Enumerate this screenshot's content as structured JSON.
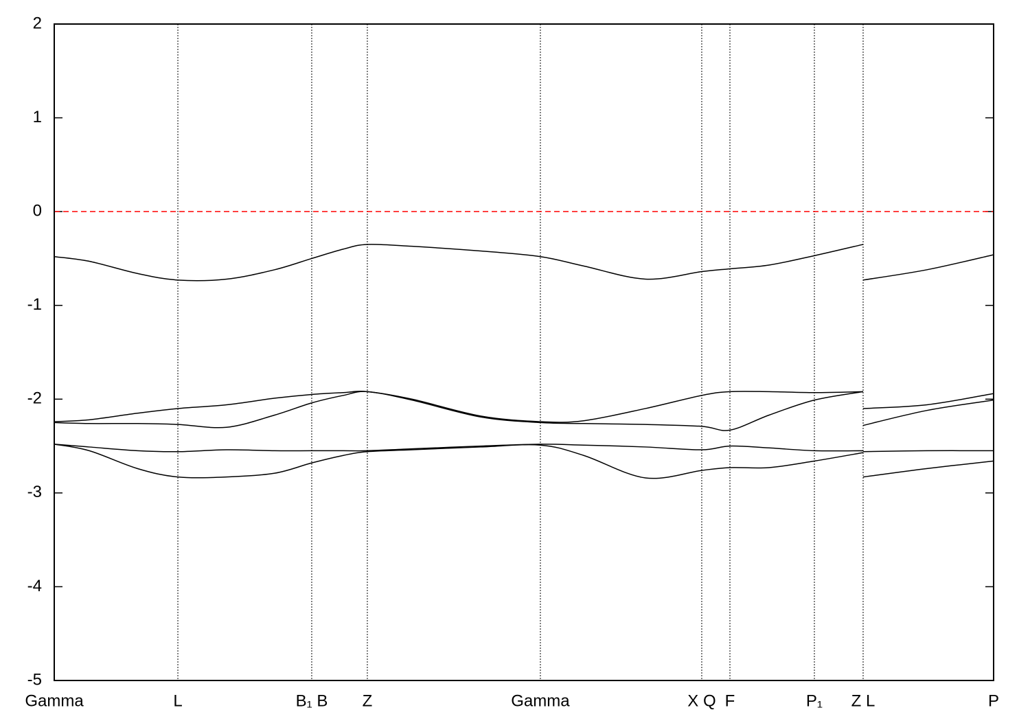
{
  "chart_data": {
    "type": "line",
    "x": [
      0,
      0.0373,
      0.0885,
      0.1316,
      0.1835,
      0.2346,
      0.2741,
      0.3078,
      0.3333,
      0.3808,
      0.4539,
      0.5175,
      0.5636,
      0.6294,
      0.6893,
      0.7193,
      0.761,
      0.8092,
      0.8611,
      0.8611,
      0.8611,
      0.9291,
      1
    ],
    "series": [
      {
        "color": "#000000",
        "values": [
          -0.48,
          -0.53,
          -0.66,
          -0.73,
          -0.72,
          -0.62,
          -0.5,
          -0.4,
          -0.35,
          -0.37,
          -0.42,
          -0.48,
          -0.58,
          -0.72,
          -0.64,
          -0.61,
          -0.57,
          -0.47,
          -0.35,
          null,
          -0.73,
          -0.62,
          -0.46
        ]
      },
      {
        "color": "#000000",
        "values": [
          -2.24,
          -2.22,
          -2.15,
          -2.1,
          -2.06,
          -1.99,
          -1.95,
          -1.93,
          -1.92,
          -2.0,
          -2.18,
          -2.24,
          -2.23,
          -2.1,
          -1.96,
          -1.92,
          -1.92,
          -1.93,
          -1.92,
          null,
          -2.1,
          -2.06,
          -1.94
        ]
      },
      {
        "color": "#000000",
        "values": [
          -2.25,
          -2.26,
          -2.26,
          -2.27,
          -2.3,
          -2.17,
          -2.04,
          -1.96,
          -1.92,
          -2.01,
          -2.19,
          -2.25,
          -2.26,
          -2.27,
          -2.29,
          -2.33,
          -2.17,
          -2.01,
          -1.92,
          null,
          -2.28,
          -2.12,
          -2.01
        ]
      },
      {
        "color": "#000000",
        "values": [
          -2.48,
          -2.51,
          -2.55,
          -2.56,
          -2.54,
          -2.55,
          -2.55,
          -2.55,
          -2.55,
          -2.53,
          -2.5,
          -2.48,
          -2.49,
          -2.51,
          -2.54,
          -2.5,
          -2.52,
          -2.55,
          -2.55,
          null,
          -2.56,
          -2.55,
          -2.55
        ]
      },
      {
        "color": "#000000",
        "values": [
          -2.48,
          -2.55,
          -2.74,
          -2.83,
          -2.83,
          -2.79,
          -2.68,
          -2.6,
          -2.56,
          -2.54,
          -2.51,
          -2.49,
          -2.6,
          -2.84,
          -2.76,
          -2.73,
          -2.73,
          -2.66,
          -2.57,
          null,
          -2.83,
          -2.74,
          -2.66
        ]
      }
    ],
    "xlim": [
      0,
      1
    ],
    "xticks": [
      {
        "value": 0,
        "label": "Gamma"
      },
      {
        "value": 0.1316,
        "label": "L"
      },
      {
        "value": 0.2741,
        "label": "B₁ B"
      },
      {
        "value": 0.3333,
        "label": "Z"
      },
      {
        "value": 0.5175,
        "label": "Gamma"
      },
      {
        "value": 0.6893,
        "label": "X Q"
      },
      {
        "value": 0.7193,
        "label": "F"
      },
      {
        "value": 0.8092,
        "label": "P₁"
      },
      {
        "value": 0.8611,
        "label": "Z L"
      },
      {
        "value": 1,
        "label": "P"
      }
    ],
    "ylim": [
      -5,
      2
    ],
    "yticks": [
      -5,
      -4,
      -3,
      -2,
      -1,
      0,
      1,
      2
    ],
    "x_grid": true,
    "hline": {
      "value": 0,
      "color": "#ff0000"
    }
  }
}
